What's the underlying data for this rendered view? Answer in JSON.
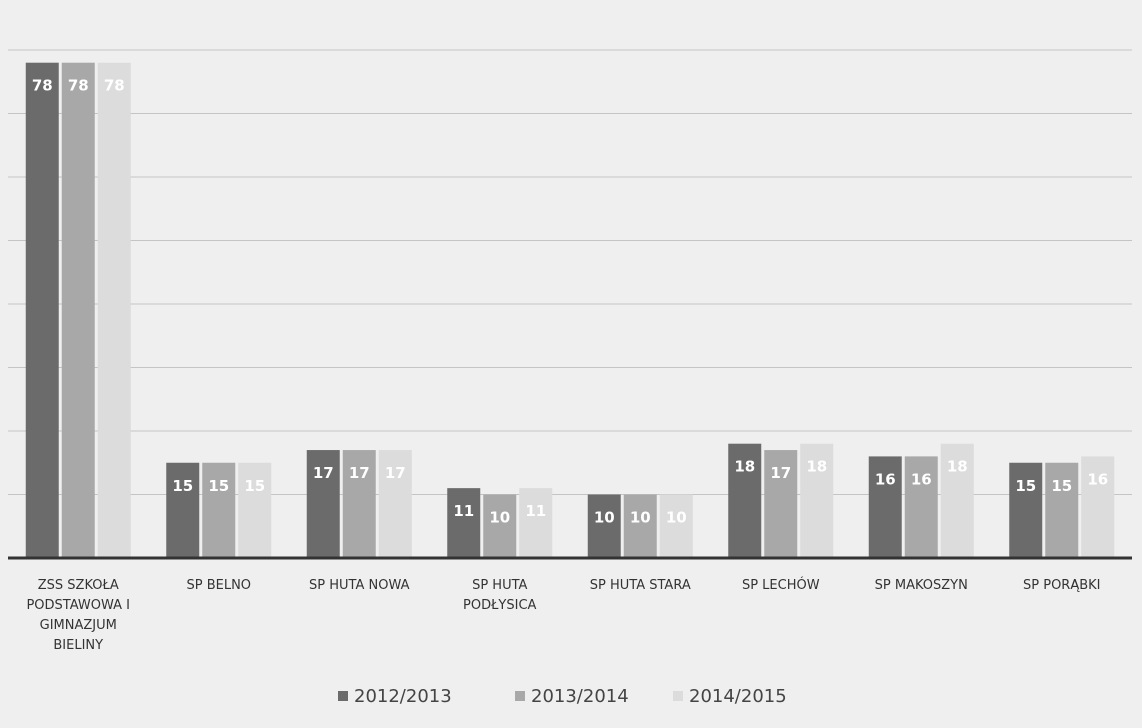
{
  "chart_data": {
    "type": "bar",
    "title": "",
    "xlabel": "",
    "ylabel": "",
    "ylim": [
      0,
      80
    ],
    "grid": true,
    "legend_position": "bottom",
    "categories": [
      [
        "ZSS SZKOŁA",
        "PODSTAWOWA I",
        "GIMNAZJUM",
        "BIELINY"
      ],
      [
        "SP BELNO"
      ],
      [
        "SP HUTA NOWA"
      ],
      [
        "SP HUTA",
        "PODŁYSICA"
      ],
      [
        "SP HUTA STARA"
      ],
      [
        "SP LECHÓW"
      ],
      [
        "SP MAKOSZYN"
      ],
      [
        "SP PORĄBKI"
      ]
    ],
    "series": [
      {
        "name": "2012/2013",
        "color": "#6b6b6b",
        "values": [
          78,
          15,
          17,
          11,
          10,
          18,
          16,
          15
        ]
      },
      {
        "name": "2013/2014",
        "color": "#a8a8a8",
        "values": [
          78,
          15,
          17,
          10,
          10,
          17,
          16,
          15
        ]
      },
      {
        "name": "2014/2015",
        "color": "#dcdcdc",
        "values": [
          78,
          15,
          17,
          11,
          10,
          18,
          18,
          16
        ]
      }
    ]
  }
}
